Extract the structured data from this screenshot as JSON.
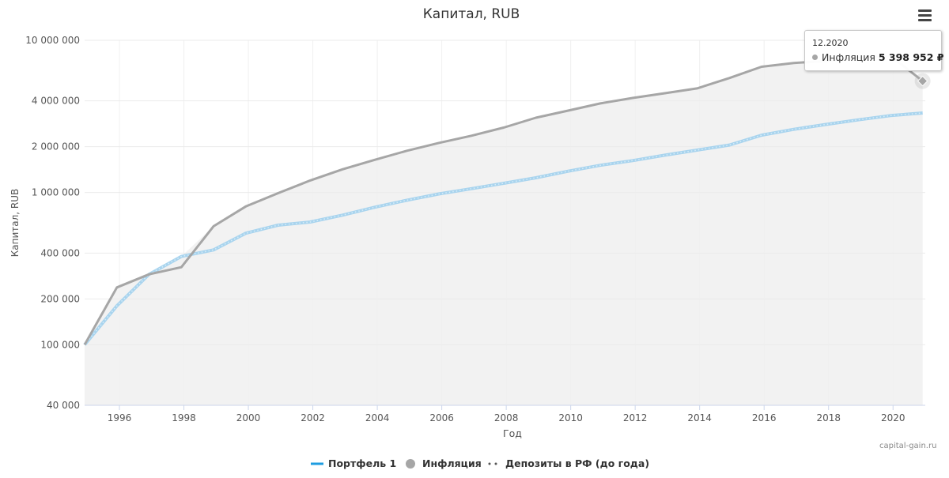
{
  "menu_icon": "hamburger-menu-icon",
  "credit": "capital-gain.ru",
  "tooltip": {
    "date": "12.2020",
    "series": "Инфляция",
    "value": "5 398 952 ₽",
    "point": {
      "x": 2020.917,
      "y": 5398952
    }
  },
  "chart_data": {
    "type": "line",
    "title": "Капитал, RUB",
    "xlabel": "Год",
    "ylabel": "Капитал, RUB",
    "yscale": "log",
    "xlim": [
      1994.92,
      2021
    ],
    "ylim": [
      40000,
      10000000
    ],
    "grid": true,
    "legend_position": "bottom-center",
    "x_ticks": [
      1996,
      1998,
      2000,
      2002,
      2004,
      2006,
      2008,
      2010,
      2012,
      2014,
      2016,
      2018,
      2020
    ],
    "x_tick_labels": [
      "1996",
      "1998",
      "2000",
      "2002",
      "2004",
      "2006",
      "2008",
      "2010",
      "2012",
      "2014",
      "2016",
      "2018",
      "2020"
    ],
    "y_ticks": [
      40000,
      100000,
      200000,
      400000,
      1000000,
      2000000,
      4000000,
      10000000
    ],
    "y_tick_labels": [
      "40 000",
      "100 000",
      "200 000",
      "400 000",
      "1 000 000",
      "2 000 000",
      "4 000 000",
      "10 000 000"
    ],
    "colors": {
      "portfolio": "#1e9ce0",
      "inflation": "#a6a6a6",
      "deposits": "#a9d4ee",
      "area_fill": "#f2f2f2"
    },
    "legend": [
      {
        "name": "Портфель 1",
        "symbol": "line"
      },
      {
        "name": "Инфляция",
        "symbol": "circle"
      },
      {
        "name": "Депозиты в РФ (до года)",
        "symbol": "dots"
      }
    ],
    "series": [
      {
        "name": "Инфляция",
        "x": [
          1994.92,
          1995.92,
          1996.92,
          1997.92,
          1998.92,
          1999.92,
          2000.92,
          2001.92,
          2002.92,
          2003.92,
          2004.92,
          2005.92,
          2006.92,
          2007.92,
          2008.92,
          2009.92,
          2010.92,
          2011.92,
          2012.92,
          2013.92,
          2014.92,
          2015.92,
          2016.92,
          2017.92,
          2018.92,
          2019.92,
          2020.92
        ],
        "values": [
          100000,
          238000,
          290000,
          323000,
          600000,
          810000,
          990000,
          1200000,
          1420000,
          1640000,
          1880000,
          2120000,
          2360000,
          2670000,
          3100000,
          3450000,
          3850000,
          4180000,
          4490000,
          4830000,
          5650000,
          6700000,
          7100000,
          7310000,
          7650000,
          7900000,
          5398952
        ]
      },
      {
        "name": "Депозиты в РФ (до года)",
        "x": [
          1994.92,
          1995.92,
          1996.92,
          1997.92,
          1998.92,
          1999.92,
          2000.92,
          2001.92,
          2002.92,
          2003.92,
          2004.92,
          2005.92,
          2006.92,
          2007.92,
          2008.92,
          2009.92,
          2010.92,
          2011.92,
          2012.92,
          2013.92,
          2014.92,
          2015.92,
          2016.92,
          2017.92,
          2018.92,
          2019.92,
          2020.92
        ],
        "values": [
          100000,
          180000,
          290000,
          380000,
          420000,
          540000,
          610000,
          640000,
          710000,
          800000,
          890000,
          980000,
          1060000,
          1150000,
          1250000,
          1380000,
          1510000,
          1620000,
          1760000,
          1900000,
          2050000,
          2380000,
          2600000,
          2800000,
          3000000,
          3200000,
          3330000
        ]
      }
    ]
  }
}
